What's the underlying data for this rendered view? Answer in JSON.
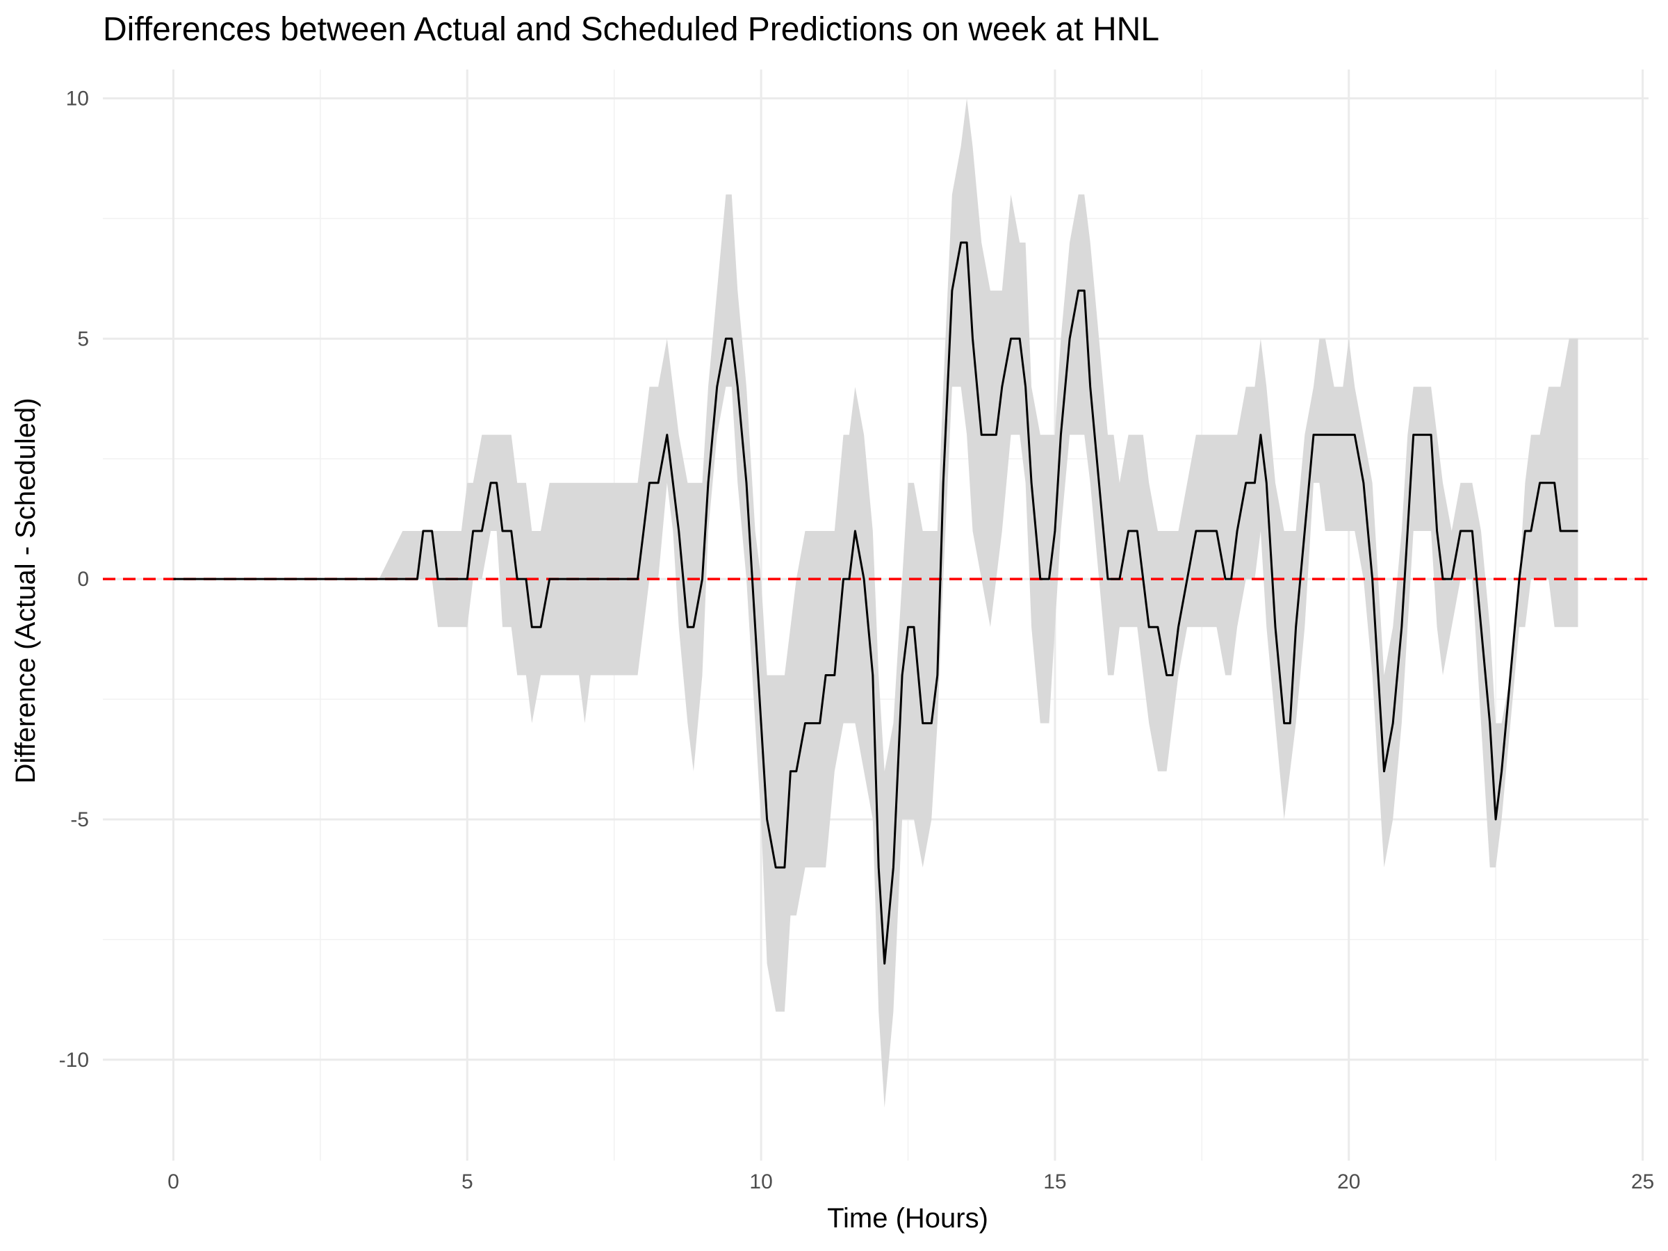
{
  "chart_data": {
    "type": "line",
    "title": "Differences between Actual and Scheduled Predictions on week at HNL",
    "xlabel": "Time (Hours)",
    "ylabel": "Difference (Actual - Scheduled)",
    "xlim": [
      -1.2,
      25.1
    ],
    "ylim": [
      -12.1,
      10.6
    ],
    "x_ticks": [
      0,
      5,
      10,
      15,
      20,
      25
    ],
    "x_tick_labels": [
      "0",
      "5",
      "10",
      "15",
      "20",
      "25"
    ],
    "y_ticks": [
      -10,
      -5,
      0,
      5,
      10
    ],
    "y_tick_labels": [
      "-10",
      "-5",
      "0",
      "5",
      "10"
    ],
    "grid": true,
    "legend": "none",
    "reference_line": {
      "y": 0,
      "style": "dashed",
      "color": "#ff0000"
    },
    "line_color": "#000000",
    "band_color": "#d9d9d9",
    "series": [
      {
        "x": [
          0,
          0.5,
          1,
          1.5,
          2,
          2.5,
          3,
          3.5,
          3.9,
          4.0,
          4.15,
          4.25,
          4.4,
          4.5,
          4.6,
          4.75,
          4.9,
          5.0,
          5.1,
          5.25,
          5.4,
          5.5,
          5.6,
          5.75,
          5.85,
          6.0,
          6.1,
          6.25,
          6.4,
          6.5,
          6.6,
          6.75,
          6.9,
          7.0,
          7.1,
          7.25,
          7.4,
          7.5,
          7.6,
          7.75,
          7.9,
          8.0,
          8.1,
          8.25,
          8.4,
          8.5,
          8.6,
          8.75,
          8.85,
          9.0,
          9.1,
          9.25,
          9.4,
          9.5,
          9.6,
          9.75,
          9.9,
          10.0,
          10.1,
          10.25,
          10.4,
          10.5,
          10.6,
          10.75,
          10.9,
          11.0,
          11.1,
          11.25,
          11.4,
          11.5,
          11.6,
          11.75,
          11.9,
          12.0,
          12.1,
          12.25,
          12.4,
          12.5,
          12.6,
          12.75,
          12.9,
          13.0,
          13.1,
          13.25,
          13.4,
          13.5,
          13.6,
          13.75,
          13.9,
          14.0,
          14.1,
          14.25,
          14.4,
          14.5,
          14.6,
          14.75,
          14.9,
          15.0,
          15.1,
          15.25,
          15.4,
          15.5,
          15.6,
          15.75,
          15.9,
          16.0,
          16.1,
          16.25,
          16.4,
          16.5,
          16.6,
          16.75,
          16.9,
          17.0,
          17.1,
          17.25,
          17.4,
          17.5,
          17.6,
          17.75,
          17.9,
          18.0,
          18.1,
          18.25,
          18.4,
          18.5,
          18.6,
          18.75,
          18.9,
          19.0,
          19.1,
          19.25,
          19.4,
          19.5,
          19.6,
          19.75,
          19.9,
          20.0,
          20.1,
          20.25,
          20.4,
          20.5,
          20.6,
          20.75,
          20.9,
          21.0,
          21.1,
          21.25,
          21.4,
          21.5,
          21.6,
          21.75,
          21.9,
          22.0,
          22.1,
          22.25,
          22.4,
          22.5,
          22.6,
          22.75,
          22.9,
          23.0,
          23.1,
          23.25,
          23.4,
          23.5,
          23.6,
          23.75,
          23.9
        ],
        "values": [
          0,
          0,
          0,
          0,
          0,
          0,
          0,
          0,
          0,
          0,
          0,
          1,
          1,
          0,
          0,
          0,
          0,
          0,
          1,
          1,
          2,
          2,
          1,
          1,
          0,
          0,
          -1,
          -1,
          0,
          0,
          0,
          0,
          0,
          0,
          0,
          0,
          0,
          0,
          0,
          0,
          0,
          1,
          2,
          2,
          3,
          2,
          1,
          -1,
          -1,
          0,
          2,
          4,
          5,
          5,
          4,
          2,
          -1,
          -3,
          -5,
          -6,
          -6,
          -4,
          -4,
          -3,
          -3,
          -3,
          -2,
          -2,
          0,
          0,
          1,
          0,
          -2,
          -6,
          -8,
          -6,
          -2,
          -1,
          -1,
          -3,
          -3,
          -2,
          2,
          6,
          7,
          7,
          5,
          3,
          3,
          3,
          4,
          5,
          5,
          4,
          2,
          0,
          0,
          1,
          3,
          5,
          6,
          6,
          4,
          2,
          0,
          0,
          0,
          1,
          1,
          0,
          -1,
          -1,
          -2,
          -2,
          -1,
          0,
          1,
          1,
          1,
          1,
          0,
          0,
          1,
          2,
          2,
          3,
          2,
          -1,
          -3,
          -3,
          -1,
          1,
          3,
          3,
          3,
          3,
          3,
          3,
          3,
          2,
          0,
          -2,
          -4,
          -3,
          -1,
          1,
          3,
          3,
          3,
          1,
          0,
          0,
          1,
          1,
          1,
          -1,
          -3,
          -5,
          -4,
          -2,
          0,
          1,
          1,
          2,
          2,
          2,
          1,
          1,
          1
        ],
        "lower": [
          0,
          0,
          0,
          0,
          0,
          0,
          0,
          0,
          0,
          0,
          0,
          0,
          0,
          -1,
          -1,
          -1,
          -1,
          -1,
          0,
          0,
          1,
          1,
          -1,
          -1,
          -2,
          -2,
          -3,
          -2,
          -2,
          -2,
          -2,
          -2,
          -2,
          -3,
          -2,
          -2,
          -2,
          -2,
          -2,
          -2,
          -2,
          -1,
          0,
          0,
          2,
          1,
          -1,
          -3,
          -4,
          -2,
          1,
          3,
          4,
          4,
          2,
          0,
          -3,
          -5,
          -8,
          -9,
          -9,
          -7,
          -7,
          -6,
          -6,
          -6,
          -6,
          -4,
          -3,
          -3,
          -3,
          -4,
          -5,
          -9,
          -11,
          -9,
          -5,
          -5,
          -5,
          -6,
          -5,
          -3,
          0,
          4,
          4,
          3,
          1,
          0,
          -1,
          0,
          1,
          3,
          3,
          2,
          -1,
          -3,
          -3,
          -1,
          1,
          3,
          3,
          3,
          2,
          0,
          -2,
          -2,
          -1,
          -1,
          -1,
          -2,
          -3,
          -4,
          -4,
          -3,
          -2,
          -1,
          -1,
          -1,
          -1,
          -1,
          -2,
          -2,
          -1,
          0,
          0,
          1,
          -1,
          -3,
          -5,
          -4,
          -3,
          -1,
          2,
          2,
          1,
          1,
          1,
          1,
          1,
          0,
          -2,
          -4,
          -6,
          -5,
          -3,
          -1,
          1,
          1,
          1,
          -1,
          -2,
          -1,
          0,
          0,
          0,
          -3,
          -6,
          -6,
          -5,
          -3,
          -1,
          -1,
          0,
          0,
          0,
          -1,
          -1,
          -1,
          -1
        ],
        "upper": [
          0,
          0,
          0,
          0,
          0,
          0,
          0,
          0,
          1,
          1,
          1,
          1,
          1,
          1,
          1,
          1,
          1,
          2,
          2,
          3,
          3,
          3,
          3,
          3,
          2,
          2,
          1,
          1,
          2,
          2,
          2,
          2,
          2,
          2,
          2,
          2,
          2,
          2,
          2,
          2,
          2,
          3,
          4,
          4,
          5,
          4,
          3,
          2,
          2,
          2,
          4,
          6,
          8,
          8,
          6,
          4,
          1,
          0,
          -2,
          -2,
          -2,
          -1,
          0,
          1,
          1,
          1,
          1,
          1,
          3,
          3,
          4,
          3,
          1,
          -2,
          -4,
          -3,
          0,
          2,
          2,
          1,
          1,
          1,
          4,
          8,
          9,
          10,
          9,
          7,
          6,
          6,
          6,
          8,
          7,
          7,
          4,
          3,
          3,
          3,
          5,
          7,
          8,
          8,
          7,
          5,
          3,
          3,
          2,
          3,
          3,
          3,
          2,
          1,
          1,
          1,
          1,
          2,
          3,
          3,
          3,
          3,
          3,
          3,
          3,
          4,
          4,
          5,
          4,
          2,
          1,
          1,
          1,
          3,
          4,
          5,
          5,
          4,
          4,
          5,
          4,
          3,
          2,
          0,
          -2,
          -1,
          1,
          3,
          4,
          4,
          4,
          3,
          2,
          1,
          2,
          2,
          2,
          1,
          -1,
          -3,
          -3,
          -2,
          0,
          2,
          3,
          3,
          4,
          4,
          4,
          5,
          5
        ]
      }
    ]
  }
}
